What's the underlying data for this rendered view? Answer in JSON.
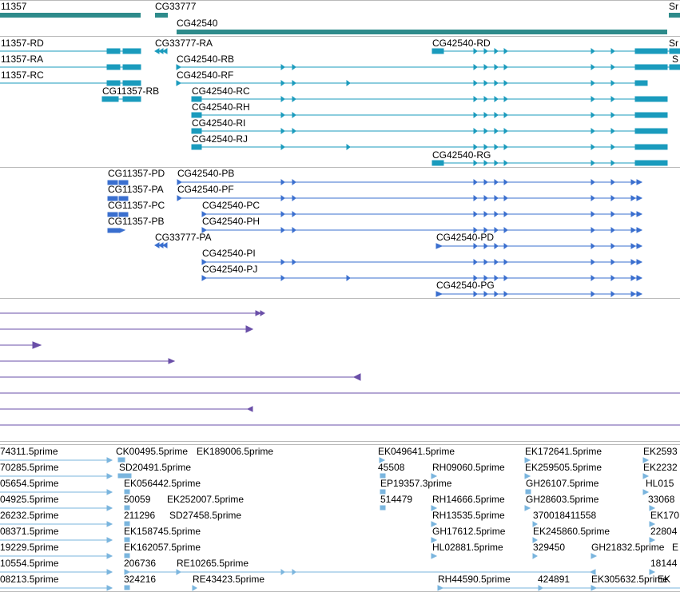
{
  "genes": {
    "labels": [
      "11357",
      "CG33777",
      "CG42540",
      "Sr"
    ]
  },
  "transcripts": {
    "labels": [
      "11357-RD",
      "CG33777-RA",
      "CG42540-RD",
      "Sr",
      "11357-RA",
      "CG42540-RB",
      "S",
      "11357-RC",
      "CG42540-RF",
      "CG11357-RB",
      "CG42540-RC",
      "CG42540-RH",
      "CG42540-RI",
      "CG42540-RJ",
      "CG42540-RG"
    ]
  },
  "proteins": {
    "labels": [
      "CG11357-PD",
      "CG42540-PB",
      "CG11357-PA",
      "CG42540-PF",
      "CG11357-PC",
      "CG42540-PC",
      "CG11357-PB",
      "CG42540-PH",
      "CG33777-PA",
      "CG42540-PD",
      "CG42540-PI",
      "CG42540-PJ",
      "CG42540-PG"
    ]
  },
  "ests": {
    "col1": [
      "74311.5prime",
      "70285.5prime",
      "05654.5prime",
      "04925.5prime",
      "26232.5prime",
      "08371.5prime",
      "19229.5prime",
      "10554.5prime",
      "08213.5prime"
    ],
    "col2": [
      "CK00495.5prime",
      "SD20491.5prime",
      "EK056442.5prime",
      "50059",
      "211296",
      "EK158745.5prime",
      "EK162057.5prime",
      "206736",
      "324216"
    ],
    "col3": [
      "EK189006.5prime",
      "EK252007.5prime",
      "SD27458.5prime",
      "RE10265.5prime",
      "RE43423.5prime"
    ],
    "col4": [
      "EK049641.5prime",
      "45508",
      "EP19357.3prime",
      "514479"
    ],
    "col5": [
      "RH09060.5prime",
      "RH14666.5prime",
      "RH13535.5prime",
      "GH17612.5prime",
      "HL02881.5prime",
      "RH44590.5prime"
    ],
    "col6": [
      "EK172641.5prime",
      "EK259505.5prime",
      "GH26107.5prime",
      "GH28603.5prime",
      "370018411558",
      "EK245860.5prime",
      "329450",
      "424891"
    ],
    "col7": [
      "GH21832.5prime",
      "EK305632.5prime"
    ],
    "col8": [
      "EK2593",
      "EK2232",
      "HL015",
      "33068",
      "EK170",
      "22804",
      "E",
      "18144",
      "EK"
    ]
  },
  "colors": {
    "gene": "#2e8b8b",
    "transcript": "#1a9bbd",
    "protein": "#3a6fcf",
    "alignment": "#6a4fa8",
    "est": "#7ab5de",
    "separator": "#b9b9b9"
  }
}
